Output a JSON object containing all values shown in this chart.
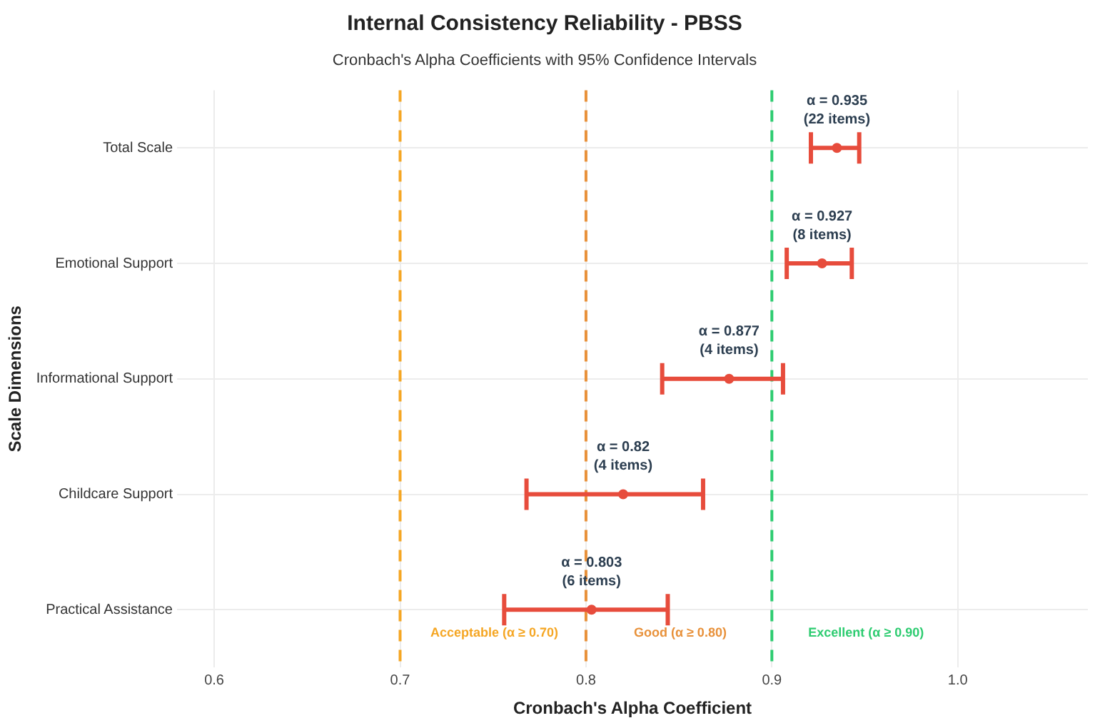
{
  "chart_data": {
    "type": "scatter",
    "title": "Internal Consistency Reliability - PBSS",
    "subtitle": "Cronbach's Alpha Coefficients with 95% Confidence Intervals",
    "xlabel": "Cronbach's Alpha Coefficient",
    "ylabel": "Scale Dimensions",
    "orientation": "horizontal",
    "categories": [
      "Total Scale",
      "Emotional Support",
      "Informational Support",
      "Childcare Support",
      "Practical Assistance"
    ],
    "values": [
      0.935,
      0.927,
      0.877,
      0.82,
      0.803
    ],
    "errors": [
      [
        0.921,
        0.947
      ],
      [
        0.908,
        0.943
      ],
      [
        0.841,
        0.906
      ],
      [
        0.768,
        0.863
      ],
      [
        0.756,
        0.844
      ]
    ],
    "value_labels": [
      "α = 0.935\n(22 items)",
      "α = 0.927\n(8 items)",
      "α = 0.877\n(4 items)",
      "α = 0.82\n(4 items)",
      "α = 0.803\n(6 items)"
    ],
    "color": "#e74c3c",
    "marker": "circle",
    "xlim": [
      0.58,
      1.07
    ],
    "xticks": [
      0.6,
      0.7,
      0.8,
      0.9,
      {
        "value": 1,
        "label": "1.0"
      }
    ],
    "grid": true,
    "ref_lines": [
      {
        "axis": "x",
        "value": 0.7,
        "label": "Acceptable (α ≥ 0.70)",
        "color": "#f5a623",
        "line_style": "dashed"
      },
      {
        "axis": "x",
        "value": 0.8,
        "label": "Good (α ≥ 0.80)",
        "color": "#e8913a",
        "line_style": "dashed"
      },
      {
        "axis": "x",
        "value": 0.9,
        "label": "Excellent (α ≥ 0.90)",
        "color": "#2ecc71",
        "line_style": "dashed"
      }
    ]
  }
}
